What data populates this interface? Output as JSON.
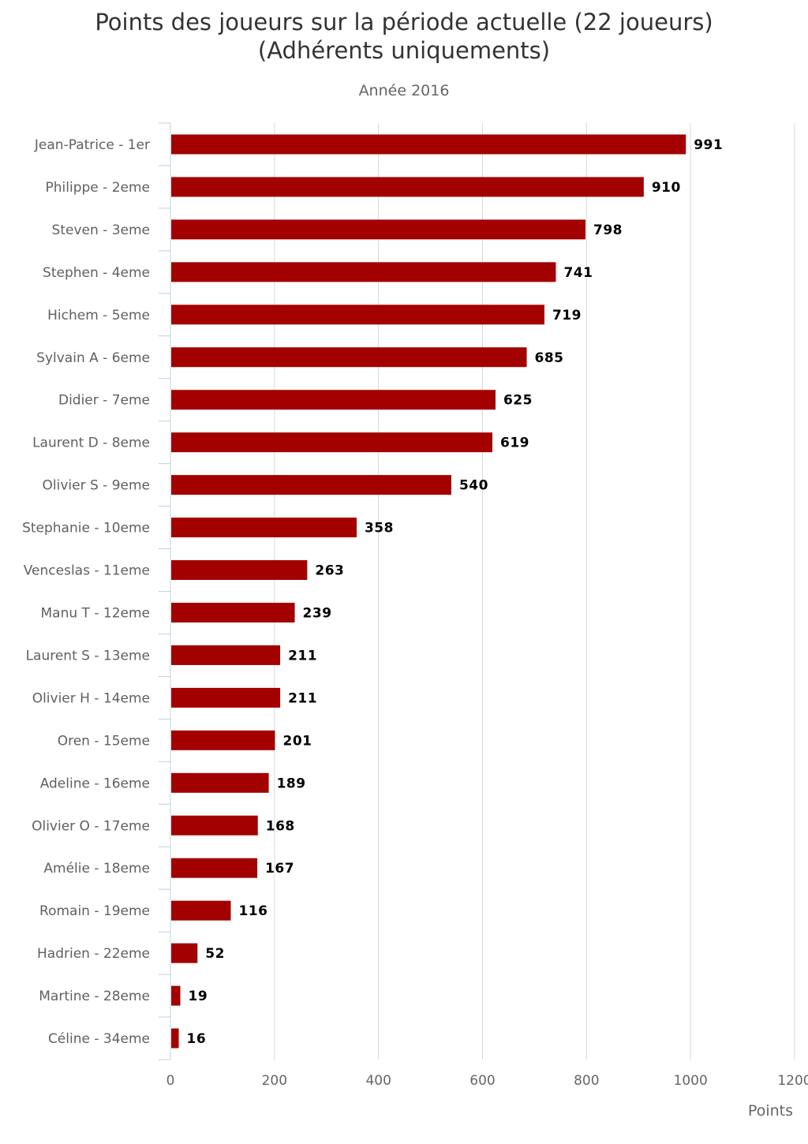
{
  "chart_data": {
    "type": "bar",
    "orientation": "horizontal",
    "title_lines": [
      "Points des joueurs sur la période actuelle (22 joueurs)",
      "(Adhérents uniquements)"
    ],
    "subtitle": "Année 2016",
    "xlabel": "Points",
    "xlim": [
      0,
      1200
    ],
    "xticks": [
      0,
      200,
      400,
      600,
      800,
      1000,
      1200
    ],
    "grid": true,
    "bar_color": "#a30000",
    "categories": [
      "Jean-Patrice - 1er",
      "Philippe - 2eme",
      "Steven - 3eme",
      "Stephen - 4eme",
      "Hichem - 5eme",
      "Sylvain A - 6eme",
      "Didier - 7eme",
      "Laurent D - 8eme",
      "Olivier S - 9eme",
      "Stephanie - 10eme",
      "Venceslas - 11eme",
      "Manu T - 12eme",
      "Laurent S - 13eme",
      "Olivier H - 14eme",
      "Oren - 15eme",
      "Adeline - 16eme",
      "Olivier O - 17eme",
      "Amélie - 18eme",
      "Romain - 19eme",
      "Hadrien - 22eme",
      "Martine - 28eme",
      "Céline - 34eme"
    ],
    "values": [
      991,
      910,
      798,
      741,
      719,
      685,
      625,
      619,
      540,
      358,
      263,
      239,
      211,
      211,
      201,
      189,
      168,
      167,
      116,
      52,
      19,
      16
    ]
  }
}
